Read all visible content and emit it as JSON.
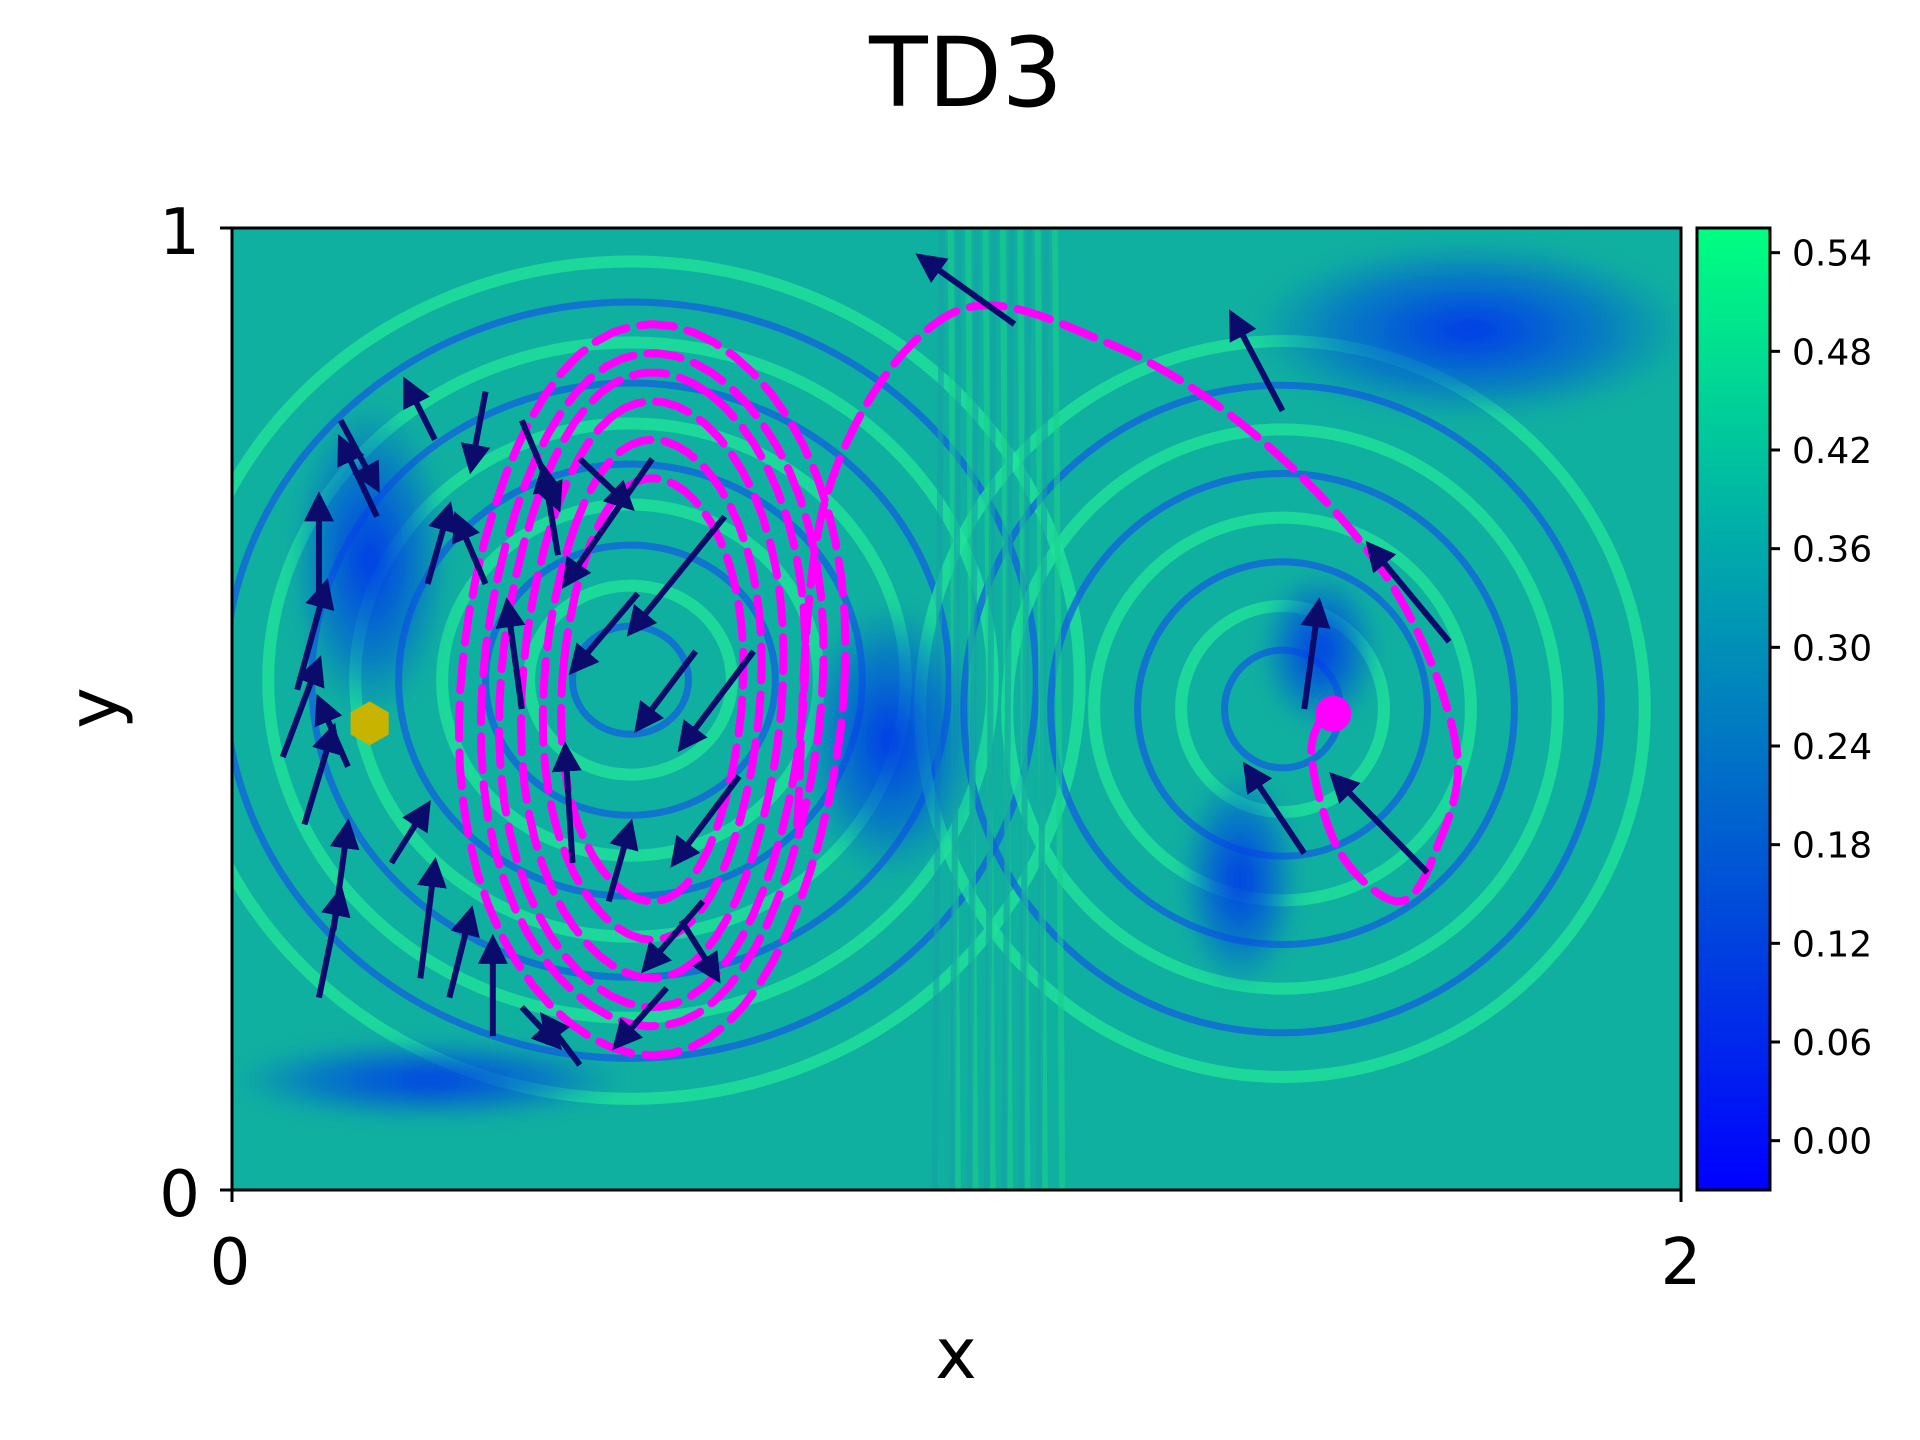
{
  "chart_data": {
    "type": "heatmap",
    "title": "TD3",
    "xlabel": "x",
    "ylabel": "y",
    "xlim": [
      0,
      2
    ],
    "ylim": [
      0,
      1
    ],
    "x_ticks": [
      "0",
      "2"
    ],
    "y_ticks": [
      "0",
      "1"
    ],
    "colorbar": {
      "cmap": "winter",
      "range": [
        -0.03,
        0.555
      ],
      "ticks": [
        "0.00",
        "0.06",
        "0.12",
        "0.18",
        "0.24",
        "0.30",
        "0.36",
        "0.42",
        "0.48",
        "0.54"
      ],
      "low_color": "#0000ff",
      "high_color": "#00ff80"
    },
    "colors": {
      "trajectory": "#ff00ff",
      "arrows": "#0b0b6b",
      "start_marker": "#c8b400"
    },
    "start_marker": {
      "x": 0.19,
      "y": 0.485,
      "shape": "hexagon"
    },
    "trajectory_left_loop": {
      "center": [
        0.58,
        0.52
      ],
      "loops": [
        {
          "rx": 0.53,
          "ry": 0.38,
          "phase": 0.0
        },
        {
          "rx": 0.47,
          "ry": 0.35,
          "phase": 0.6
        },
        {
          "rx": 0.42,
          "ry": 0.33,
          "phase": 1.2
        },
        {
          "rx": 0.36,
          "ry": 0.3,
          "phase": 1.8
        },
        {
          "rx": 0.3,
          "ry": 0.26,
          "phase": 2.4
        },
        {
          "rx": 0.25,
          "ry": 0.22,
          "phase": 3.0
        }
      ]
    },
    "trajectory_right_path": [
      [
        0.78,
        0.38
      ],
      [
        0.82,
        0.72
      ],
      [
        0.99,
        0.91
      ],
      [
        1.21,
        0.88
      ],
      [
        1.42,
        0.78
      ],
      [
        1.6,
        0.63
      ],
      [
        1.69,
        0.46
      ],
      [
        1.66,
        0.35
      ],
      [
        1.61,
        0.3
      ],
      [
        1.53,
        0.35
      ],
      [
        1.49,
        0.45
      ],
      [
        1.51,
        0.5
      ]
    ],
    "trajectory_end_marker": {
      "x": 1.52,
      "y": 0.495
    },
    "arrows": [
      {
        "x": 0.4,
        "y": 0.5,
        "dx": -0.02,
        "dy": 0.11
      },
      {
        "x": 0.09,
        "y": 0.52,
        "dx": 0.04,
        "dy": 0.11
      },
      {
        "x": 0.12,
        "y": 0.62,
        "dx": 0.0,
        "dy": 0.1
      },
      {
        "x": 0.2,
        "y": 0.7,
        "dx": -0.05,
        "dy": 0.08
      },
      {
        "x": 0.28,
        "y": 0.78,
        "dx": -0.04,
        "dy": 0.06
      },
      {
        "x": 0.35,
        "y": 0.83,
        "dx": -0.02,
        "dy": -0.08
      },
      {
        "x": 0.4,
        "y": 0.8,
        "dx": 0.05,
        "dy": -0.09
      },
      {
        "x": 0.48,
        "y": 0.76,
        "dx": 0.07,
        "dy": -0.05
      },
      {
        "x": 0.58,
        "y": 0.76,
        "dx": -0.12,
        "dy": -0.13
      },
      {
        "x": 0.68,
        "y": 0.7,
        "dx": -0.13,
        "dy": -0.12
      },
      {
        "x": 0.72,
        "y": 0.56,
        "dx": -0.1,
        "dy": -0.1
      },
      {
        "x": 0.7,
        "y": 0.43,
        "dx": -0.09,
        "dy": -0.09
      },
      {
        "x": 0.65,
        "y": 0.3,
        "dx": -0.08,
        "dy": -0.07
      },
      {
        "x": 0.6,
        "y": 0.21,
        "dx": -0.07,
        "dy": -0.06
      },
      {
        "x": 0.48,
        "y": 0.13,
        "dx": -0.05,
        "dy": 0.05
      },
      {
        "x": 0.36,
        "y": 0.16,
        "dx": 0.0,
        "dy": 0.1
      },
      {
        "x": 0.26,
        "y": 0.22,
        "dx": 0.02,
        "dy": 0.12
      },
      {
        "x": 0.14,
        "y": 0.27,
        "dx": 0.02,
        "dy": 0.11
      },
      {
        "x": 0.1,
        "y": 0.38,
        "dx": 0.04,
        "dy": 0.1
      },
      {
        "x": 0.07,
        "y": 0.45,
        "dx": 0.05,
        "dy": 0.1
      },
      {
        "x": 0.15,
        "y": 0.8,
        "dx": 0.05,
        "dy": -0.07
      },
      {
        "x": 0.27,
        "y": 0.63,
        "dx": 0.03,
        "dy": 0.08
      },
      {
        "x": 0.47,
        "y": 0.34,
        "dx": -0.01,
        "dy": 0.12
      },
      {
        "x": 0.52,
        "y": 0.3,
        "dx": 0.03,
        "dy": 0.08
      },
      {
        "x": 0.62,
        "y": 0.28,
        "dx": 0.05,
        "dy": -0.06
      },
      {
        "x": 0.4,
        "y": 0.19,
        "dx": 0.05,
        "dy": -0.04
      },
      {
        "x": 0.3,
        "y": 0.2,
        "dx": 0.03,
        "dy": 0.09
      },
      {
        "x": 0.12,
        "y": 0.2,
        "dx": 0.03,
        "dy": 0.11
      },
      {
        "x": 0.35,
        "y": 0.63,
        "dx": -0.04,
        "dy": 0.07
      },
      {
        "x": 0.45,
        "y": 0.66,
        "dx": -0.02,
        "dy": 0.09
      },
      {
        "x": 0.16,
        "y": 0.44,
        "dx": -0.04,
        "dy": 0.07
      },
      {
        "x": 0.22,
        "y": 0.34,
        "dx": 0.05,
        "dy": 0.06
      },
      {
        "x": 0.56,
        "y": 0.62,
        "dx": -0.09,
        "dy": -0.08
      },
      {
        "x": 0.64,
        "y": 0.56,
        "dx": -0.08,
        "dy": -0.08
      },
      {
        "x": 1.08,
        "y": 0.9,
        "dx": -0.13,
        "dy": 0.07
      },
      {
        "x": 1.45,
        "y": 0.81,
        "dx": -0.07,
        "dy": 0.1
      },
      {
        "x": 1.68,
        "y": 0.57,
        "dx": -0.11,
        "dy": 0.1
      },
      {
        "x": 1.48,
        "y": 0.5,
        "dx": 0.02,
        "dy": 0.11
      },
      {
        "x": 1.65,
        "y": 0.33,
        "dx": -0.13,
        "dy": 0.1
      },
      {
        "x": 1.48,
        "y": 0.35,
        "dx": -0.08,
        "dy": 0.09
      }
    ]
  }
}
